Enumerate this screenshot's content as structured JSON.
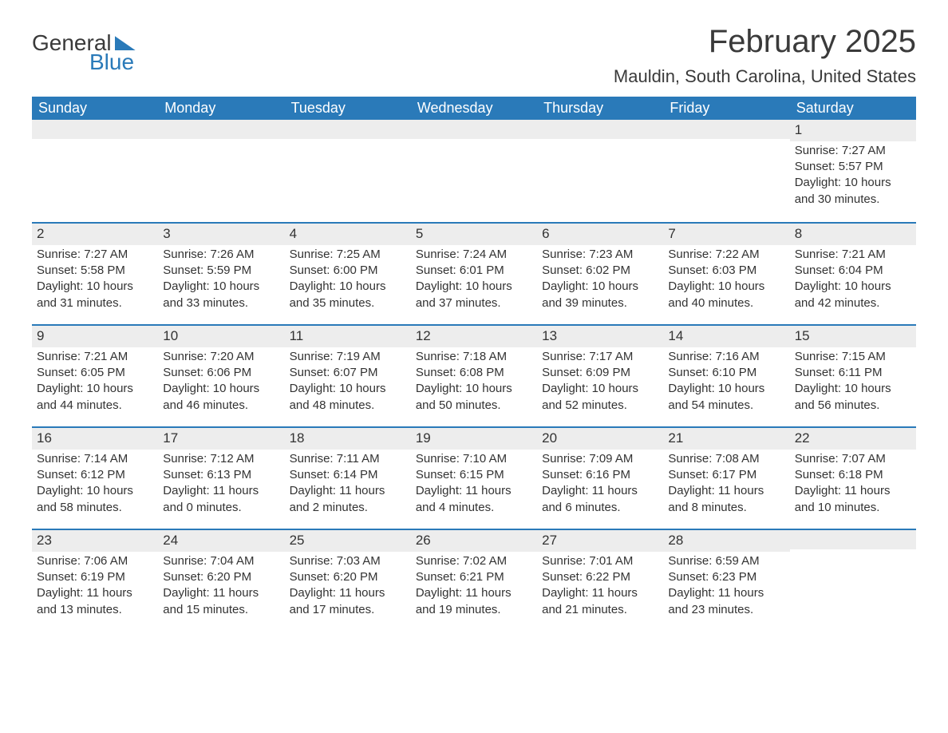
{
  "brand": {
    "word1": "General",
    "word2": "Blue",
    "accent_color": "#2a7ab9"
  },
  "title": "February 2025",
  "location": "Mauldin, South Carolina, United States",
  "header_bg": "#2a7ab9",
  "header_text_color": "#ffffff",
  "daynum_bg": "#ededed",
  "text_color": "#333333",
  "body_bg": "#ffffff",
  "font_family": "Arial, Helvetica, sans-serif",
  "title_fontsize": 40,
  "location_fontsize": 22,
  "weekday_fontsize": 18,
  "cell_fontsize": 15,
  "weekdays": [
    "Sunday",
    "Monday",
    "Tuesday",
    "Wednesday",
    "Thursday",
    "Friday",
    "Saturday"
  ],
  "weeks": [
    [
      {
        "n": "",
        "sr": "",
        "ss": "",
        "dl": ""
      },
      {
        "n": "",
        "sr": "",
        "ss": "",
        "dl": ""
      },
      {
        "n": "",
        "sr": "",
        "ss": "",
        "dl": ""
      },
      {
        "n": "",
        "sr": "",
        "ss": "",
        "dl": ""
      },
      {
        "n": "",
        "sr": "",
        "ss": "",
        "dl": ""
      },
      {
        "n": "",
        "sr": "",
        "ss": "",
        "dl": ""
      },
      {
        "n": "1",
        "sr": "Sunrise: 7:27 AM",
        "ss": "Sunset: 5:57 PM",
        "dl": "Daylight: 10 hours and 30 minutes."
      }
    ],
    [
      {
        "n": "2",
        "sr": "Sunrise: 7:27 AM",
        "ss": "Sunset: 5:58 PM",
        "dl": "Daylight: 10 hours and 31 minutes."
      },
      {
        "n": "3",
        "sr": "Sunrise: 7:26 AM",
        "ss": "Sunset: 5:59 PM",
        "dl": "Daylight: 10 hours and 33 minutes."
      },
      {
        "n": "4",
        "sr": "Sunrise: 7:25 AM",
        "ss": "Sunset: 6:00 PM",
        "dl": "Daylight: 10 hours and 35 minutes."
      },
      {
        "n": "5",
        "sr": "Sunrise: 7:24 AM",
        "ss": "Sunset: 6:01 PM",
        "dl": "Daylight: 10 hours and 37 minutes."
      },
      {
        "n": "6",
        "sr": "Sunrise: 7:23 AM",
        "ss": "Sunset: 6:02 PM",
        "dl": "Daylight: 10 hours and 39 minutes."
      },
      {
        "n": "7",
        "sr": "Sunrise: 7:22 AM",
        "ss": "Sunset: 6:03 PM",
        "dl": "Daylight: 10 hours and 40 minutes."
      },
      {
        "n": "8",
        "sr": "Sunrise: 7:21 AM",
        "ss": "Sunset: 6:04 PM",
        "dl": "Daylight: 10 hours and 42 minutes."
      }
    ],
    [
      {
        "n": "9",
        "sr": "Sunrise: 7:21 AM",
        "ss": "Sunset: 6:05 PM",
        "dl": "Daylight: 10 hours and 44 minutes."
      },
      {
        "n": "10",
        "sr": "Sunrise: 7:20 AM",
        "ss": "Sunset: 6:06 PM",
        "dl": "Daylight: 10 hours and 46 minutes."
      },
      {
        "n": "11",
        "sr": "Sunrise: 7:19 AM",
        "ss": "Sunset: 6:07 PM",
        "dl": "Daylight: 10 hours and 48 minutes."
      },
      {
        "n": "12",
        "sr": "Sunrise: 7:18 AM",
        "ss": "Sunset: 6:08 PM",
        "dl": "Daylight: 10 hours and 50 minutes."
      },
      {
        "n": "13",
        "sr": "Sunrise: 7:17 AM",
        "ss": "Sunset: 6:09 PM",
        "dl": "Daylight: 10 hours and 52 minutes."
      },
      {
        "n": "14",
        "sr": "Sunrise: 7:16 AM",
        "ss": "Sunset: 6:10 PM",
        "dl": "Daylight: 10 hours and 54 minutes."
      },
      {
        "n": "15",
        "sr": "Sunrise: 7:15 AM",
        "ss": "Sunset: 6:11 PM",
        "dl": "Daylight: 10 hours and 56 minutes."
      }
    ],
    [
      {
        "n": "16",
        "sr": "Sunrise: 7:14 AM",
        "ss": "Sunset: 6:12 PM",
        "dl": "Daylight: 10 hours and 58 minutes."
      },
      {
        "n": "17",
        "sr": "Sunrise: 7:12 AM",
        "ss": "Sunset: 6:13 PM",
        "dl": "Daylight: 11 hours and 0 minutes."
      },
      {
        "n": "18",
        "sr": "Sunrise: 7:11 AM",
        "ss": "Sunset: 6:14 PM",
        "dl": "Daylight: 11 hours and 2 minutes."
      },
      {
        "n": "19",
        "sr": "Sunrise: 7:10 AM",
        "ss": "Sunset: 6:15 PM",
        "dl": "Daylight: 11 hours and 4 minutes."
      },
      {
        "n": "20",
        "sr": "Sunrise: 7:09 AM",
        "ss": "Sunset: 6:16 PM",
        "dl": "Daylight: 11 hours and 6 minutes."
      },
      {
        "n": "21",
        "sr": "Sunrise: 7:08 AM",
        "ss": "Sunset: 6:17 PM",
        "dl": "Daylight: 11 hours and 8 minutes."
      },
      {
        "n": "22",
        "sr": "Sunrise: 7:07 AM",
        "ss": "Sunset: 6:18 PM",
        "dl": "Daylight: 11 hours and 10 minutes."
      }
    ],
    [
      {
        "n": "23",
        "sr": "Sunrise: 7:06 AM",
        "ss": "Sunset: 6:19 PM",
        "dl": "Daylight: 11 hours and 13 minutes."
      },
      {
        "n": "24",
        "sr": "Sunrise: 7:04 AM",
        "ss": "Sunset: 6:20 PM",
        "dl": "Daylight: 11 hours and 15 minutes."
      },
      {
        "n": "25",
        "sr": "Sunrise: 7:03 AM",
        "ss": "Sunset: 6:20 PM",
        "dl": "Daylight: 11 hours and 17 minutes."
      },
      {
        "n": "26",
        "sr": "Sunrise: 7:02 AM",
        "ss": "Sunset: 6:21 PM",
        "dl": "Daylight: 11 hours and 19 minutes."
      },
      {
        "n": "27",
        "sr": "Sunrise: 7:01 AM",
        "ss": "Sunset: 6:22 PM",
        "dl": "Daylight: 11 hours and 21 minutes."
      },
      {
        "n": "28",
        "sr": "Sunrise: 6:59 AM",
        "ss": "Sunset: 6:23 PM",
        "dl": "Daylight: 11 hours and 23 minutes."
      },
      {
        "n": "",
        "sr": "",
        "ss": "",
        "dl": ""
      }
    ]
  ]
}
